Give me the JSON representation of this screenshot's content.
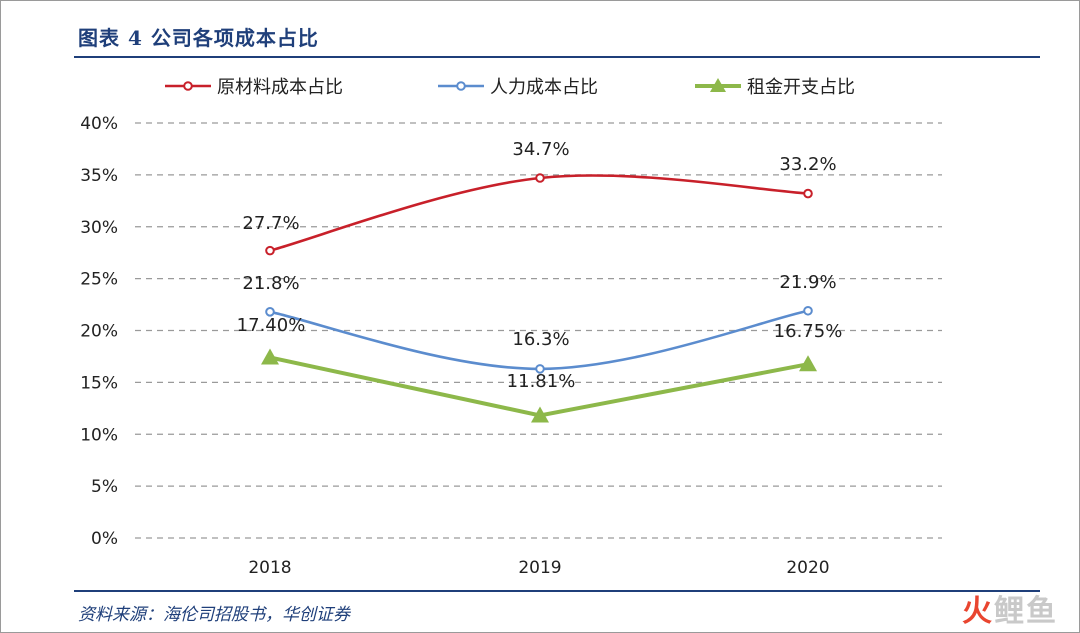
{
  "header": {
    "title": "图表 4   公司各项成本占比"
  },
  "footer": {
    "source": "资料来源：海伦司招股书，华创证券",
    "watermark_part1": "火",
    "watermark_part2": "鲤鱼"
  },
  "chart_data": {
    "type": "line",
    "categories": [
      "2018",
      "2019",
      "2020"
    ],
    "ylim": [
      0,
      40
    ],
    "yticks": [
      "0%",
      "5%",
      "10%",
      "15%",
      "20%",
      "25%",
      "30%",
      "35%",
      "40%"
    ],
    "grid": true,
    "legend_position": "top",
    "series": [
      {
        "name": "原材料成本占比",
        "values": [
          27.7,
          34.7,
          33.2
        ],
        "labels": [
          "27.7%",
          "34.7%",
          "33.2%"
        ],
        "color": "#c8202a",
        "marker": "circle",
        "smooth": true
      },
      {
        "name": "人力成本占比",
        "values": [
          21.8,
          16.3,
          21.9
        ],
        "labels": [
          "21.8%",
          "16.3%",
          "21.9%"
        ],
        "color": "#5b8cce",
        "marker": "circle",
        "smooth": true
      },
      {
        "name": "租金开支占比",
        "values": [
          17.4,
          11.81,
          16.75
        ],
        "labels": [
          "17.40%",
          "11.81%",
          "16.75%"
        ],
        "color": "#8db84a",
        "marker": "triangle",
        "smooth": false
      }
    ]
  }
}
